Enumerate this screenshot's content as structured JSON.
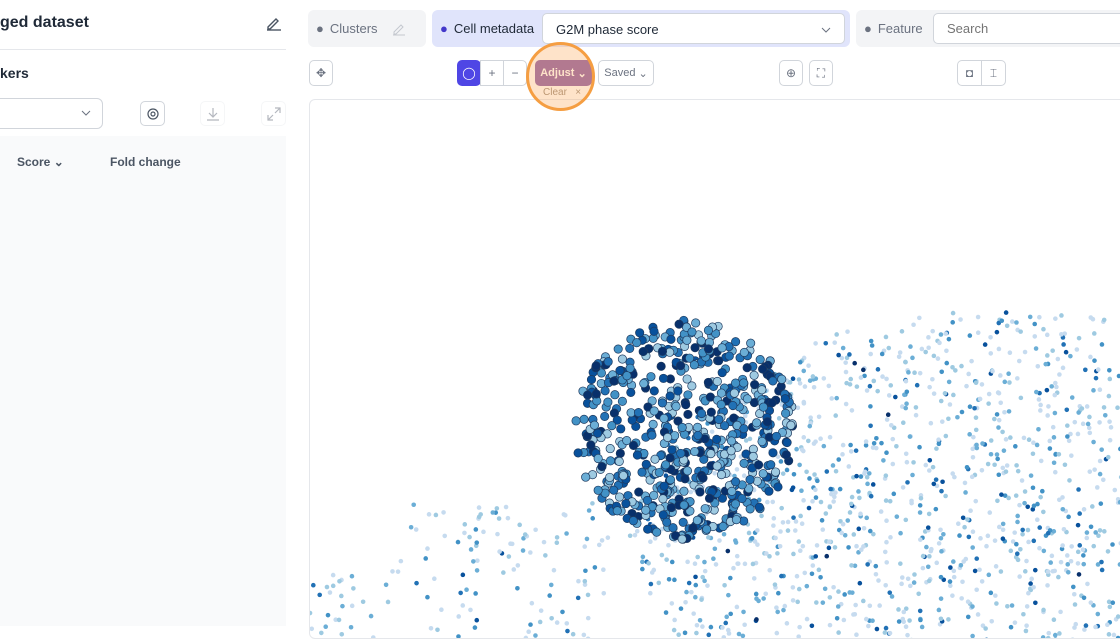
{
  "left_panel": {
    "title": "ged dataset",
    "subtitle": "kers",
    "columns": [
      {
        "label": "Score",
        "sortable": true
      },
      {
        "label": "Fold change"
      }
    ]
  },
  "top_bar": {
    "clusters": {
      "label": "Clusters"
    },
    "cell_metadata": {
      "label": "Cell metadata",
      "value": "G2M phase score"
    },
    "feature": {
      "label": "Feature",
      "placeholder": "Search"
    }
  },
  "toolbar": {
    "adjust": "Adjust",
    "clear": "Clear",
    "saved": "Saved",
    "plus": "+",
    "minus": "−"
  },
  "colors": {
    "accent": "#4f46e5",
    "adjust": "#8b5ca8",
    "highlight": "#f59e42",
    "point_light": "#9ecae1",
    "point_dark": "#08306b"
  }
}
